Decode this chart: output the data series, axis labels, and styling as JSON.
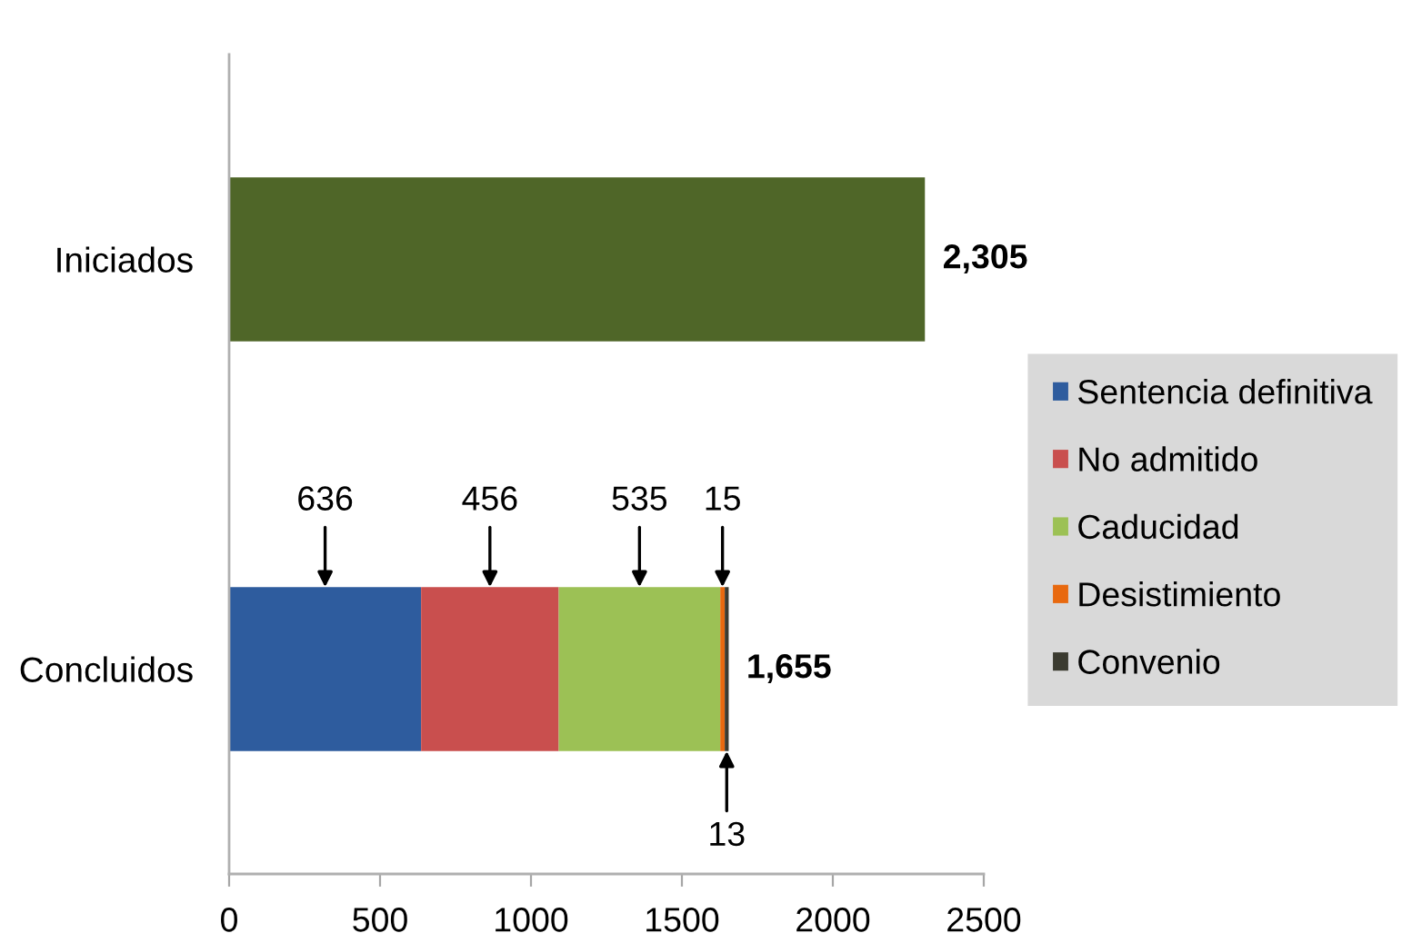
{
  "chart_data": {
    "type": "bar",
    "orientation": "horizontal",
    "stacked": true,
    "categories": [
      "Iniciados",
      "Concluidos"
    ],
    "series": [
      {
        "color": "#4f6628",
        "values": [
          2305,
          null
        ]
      },
      {
        "name": "Sentencia definitiva",
        "color": "#2e5c9e",
        "values": [
          null,
          636
        ],
        "value_labels": [
          null,
          "636"
        ]
      },
      {
        "name": "No admitido",
        "color": "#c94f4e",
        "values": [
          null,
          456
        ],
        "value_labels": [
          null,
          "456"
        ]
      },
      {
        "name": "Caducidad",
        "color": "#9cc155",
        "values": [
          null,
          535
        ],
        "value_labels": [
          null,
          "535"
        ]
      },
      {
        "name": "Desistimiento",
        "color": "#e8690f",
        "values": [
          null,
          15
        ],
        "value_labels": [
          null,
          "15"
        ]
      },
      {
        "name": "Convenio",
        "color": "#3b3b30",
        "values": [
          null,
          13
        ],
        "value_labels": [
          null,
          "13"
        ]
      }
    ],
    "totals": [
      "2,305",
      "1,655"
    ],
    "xlim": [
      0,
      2500
    ],
    "xticks": [
      0,
      500,
      1000,
      1500,
      2000,
      2500
    ],
    "legend": "right"
  }
}
